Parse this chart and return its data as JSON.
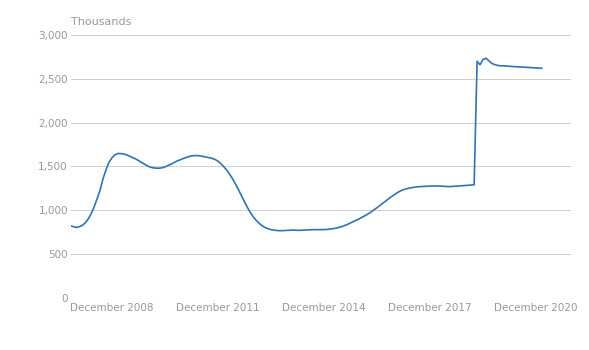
{
  "title": "Thousands",
  "line_color": "#2e75b6",
  "line_width": 1.2,
  "background_color": "#ffffff",
  "grid_color": "#d0d0d0",
  "ylim": [
    0,
    3000
  ],
  "yticks": [
    0,
    500,
    1000,
    1500,
    2000,
    2500,
    3000
  ],
  "xlim": [
    0,
    170
  ],
  "xtick_labels": [
    "December 2008",
    "December 2011",
    "December 2014",
    "December 2017",
    "December 2020"
  ],
  "xtick_positions": [
    14,
    50,
    86,
    122,
    158
  ],
  "data": [
    [
      0,
      820
    ],
    [
      1,
      808
    ],
    [
      2,
      800
    ],
    [
      3,
      810
    ],
    [
      4,
      825
    ],
    [
      5,
      855
    ],
    [
      6,
      900
    ],
    [
      7,
      960
    ],
    [
      8,
      1040
    ],
    [
      9,
      1130
    ],
    [
      10,
      1230
    ],
    [
      11,
      1360
    ],
    [
      12,
      1460
    ],
    [
      13,
      1545
    ],
    [
      14,
      1595
    ],
    [
      15,
      1630
    ],
    [
      16,
      1645
    ],
    [
      17,
      1645
    ],
    [
      18,
      1640
    ],
    [
      19,
      1630
    ],
    [
      20,
      1615
    ],
    [
      21,
      1600
    ],
    [
      22,
      1585
    ],
    [
      23,
      1565
    ],
    [
      24,
      1545
    ],
    [
      25,
      1525
    ],
    [
      26,
      1505
    ],
    [
      27,
      1490
    ],
    [
      28,
      1482
    ],
    [
      29,
      1478
    ],
    [
      30,
      1478
    ],
    [
      31,
      1482
    ],
    [
      32,
      1492
    ],
    [
      33,
      1508
    ],
    [
      34,
      1522
    ],
    [
      35,
      1540
    ],
    [
      36,
      1558
    ],
    [
      37,
      1572
    ],
    [
      38,
      1585
    ],
    [
      39,
      1598
    ],
    [
      40,
      1610
    ],
    [
      41,
      1618
    ],
    [
      42,
      1622
    ],
    [
      43,
      1622
    ],
    [
      44,
      1618
    ],
    [
      45,
      1612
    ],
    [
      46,
      1605
    ],
    [
      47,
      1598
    ],
    [
      48,
      1590
    ],
    [
      49,
      1578
    ],
    [
      50,
      1558
    ],
    [
      51,
      1530
    ],
    [
      52,
      1495
    ],
    [
      53,
      1455
    ],
    [
      54,
      1408
    ],
    [
      55,
      1355
    ],
    [
      56,
      1295
    ],
    [
      57,
      1230
    ],
    [
      58,
      1162
    ],
    [
      59,
      1095
    ],
    [
      60,
      1030
    ],
    [
      61,
      972
    ],
    [
      62,
      922
    ],
    [
      63,
      882
    ],
    [
      64,
      848
    ],
    [
      65,
      820
    ],
    [
      66,
      800
    ],
    [
      67,
      786
    ],
    [
      68,
      776
    ],
    [
      69,
      770
    ],
    [
      70,
      766
    ],
    [
      71,
      764
    ],
    [
      72,
      764
    ],
    [
      73,
      766
    ],
    [
      74,
      768
    ],
    [
      75,
      770
    ],
    [
      76,
      770
    ],
    [
      77,
      768
    ],
    [
      78,
      768
    ],
    [
      79,
      770
    ],
    [
      80,
      772
    ],
    [
      81,
      774
    ],
    [
      82,
      775
    ],
    [
      83,
      775
    ],
    [
      84,
      775
    ],
    [
      85,
      775
    ],
    [
      86,
      776
    ],
    [
      87,
      778
    ],
    [
      88,
      782
    ],
    [
      89,
      786
    ],
    [
      90,
      792
    ],
    [
      91,
      800
    ],
    [
      92,
      810
    ],
    [
      93,
      822
    ],
    [
      94,
      836
    ],
    [
      95,
      852
    ],
    [
      96,
      868
    ],
    [
      97,
      884
    ],
    [
      98,
      900
    ],
    [
      99,
      918
    ],
    [
      100,
      936
    ],
    [
      101,
      956
    ],
    [
      102,
      978
    ],
    [
      103,
      1002
    ],
    [
      104,
      1026
    ],
    [
      105,
      1052
    ],
    [
      106,
      1078
    ],
    [
      107,
      1105
    ],
    [
      108,
      1130
    ],
    [
      109,
      1155
    ],
    [
      110,
      1178
    ],
    [
      111,
      1200
    ],
    [
      112,
      1218
    ],
    [
      113,
      1232
    ],
    [
      114,
      1242
    ],
    [
      115,
      1250
    ],
    [
      116,
      1256
    ],
    [
      117,
      1262
    ],
    [
      118,
      1266
    ],
    [
      119,
      1268
    ],
    [
      120,
      1270
    ],
    [
      121,
      1272
    ],
    [
      122,
      1274
    ],
    [
      123,
      1275
    ],
    [
      124,
      1275
    ],
    [
      125,
      1274
    ],
    [
      126,
      1272
    ],
    [
      127,
      1270
    ],
    [
      128,
      1268
    ],
    [
      129,
      1268
    ],
    [
      130,
      1270
    ],
    [
      131,
      1272
    ],
    [
      132,
      1275
    ],
    [
      133,
      1278
    ],
    [
      134,
      1280
    ],
    [
      135,
      1282
    ],
    [
      136,
      1285
    ],
    [
      137,
      1288
    ],
    [
      138,
      2700
    ],
    [
      139,
      2660
    ],
    [
      140,
      2720
    ],
    [
      141,
      2735
    ],
    [
      142,
      2705
    ],
    [
      143,
      2675
    ],
    [
      144,
      2662
    ],
    [
      145,
      2652
    ],
    [
      146,
      2648
    ],
    [
      147,
      2648
    ],
    [
      148,
      2645
    ],
    [
      149,
      2642
    ],
    [
      150,
      2640
    ],
    [
      151,
      2638
    ],
    [
      152,
      2636
    ],
    [
      153,
      2634
    ],
    [
      154,
      2632
    ],
    [
      155,
      2630
    ],
    [
      156,
      2628
    ],
    [
      157,
      2626
    ],
    [
      158,
      2624
    ],
    [
      159,
      2622
    ],
    [
      160,
      2620
    ]
  ]
}
